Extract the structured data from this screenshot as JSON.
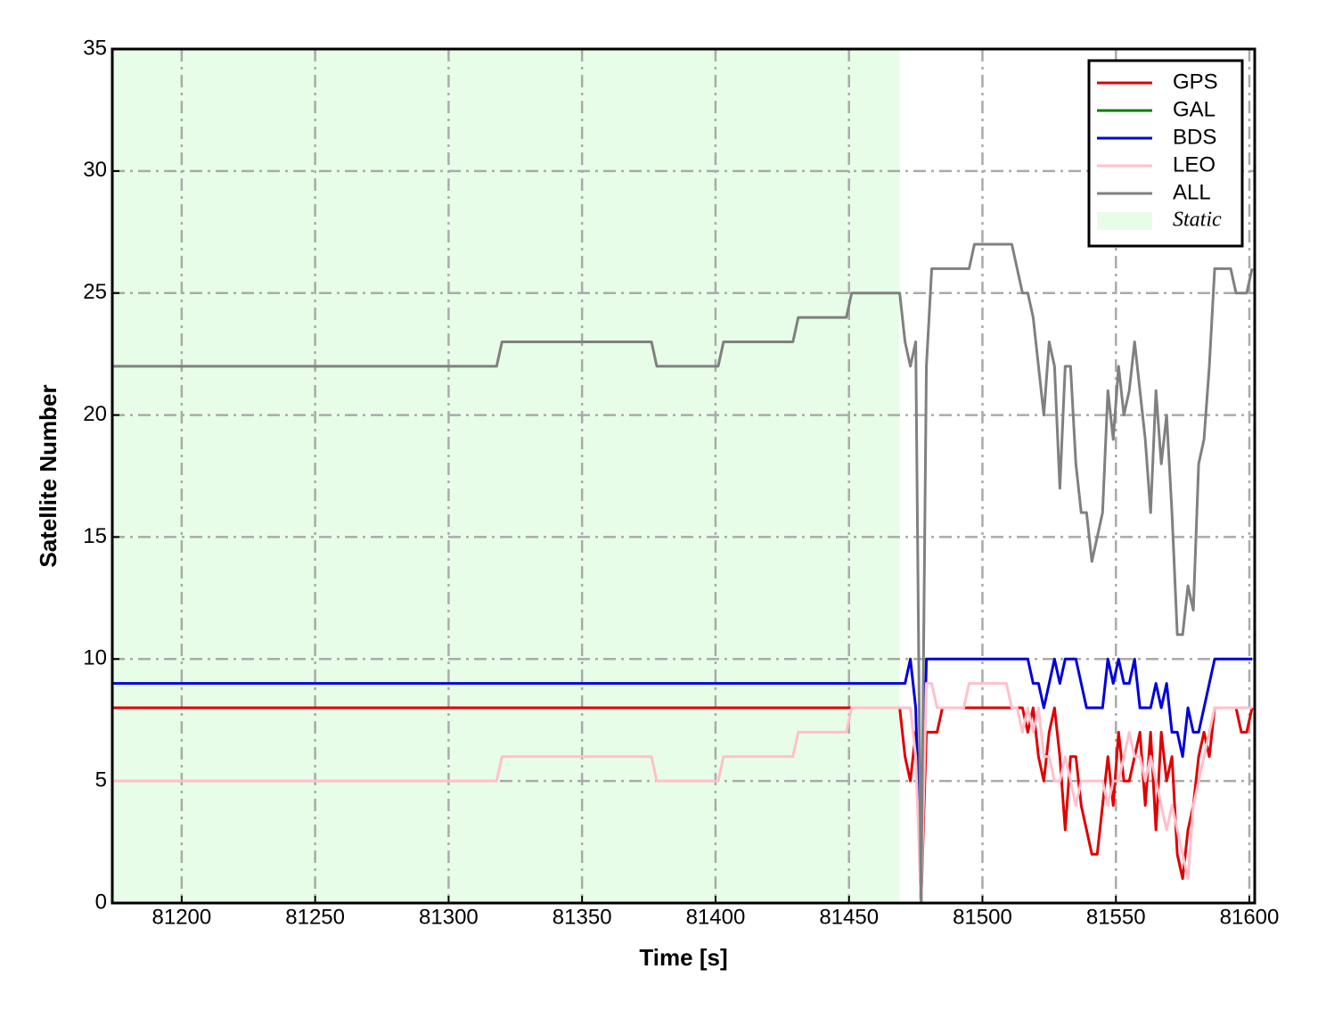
{
  "chart_data": {
    "type": "line",
    "xlabel": "Time [s]",
    "ylabel": "Satellite Number",
    "xlim": [
      81174,
      81602
    ],
    "ylim": [
      0,
      35
    ],
    "xticks": [
      81200,
      81250,
      81300,
      81350,
      81400,
      81450,
      81500,
      81550,
      81600
    ],
    "yticks": [
      0,
      5,
      10,
      15,
      20,
      25,
      30,
      35
    ],
    "grid": true,
    "legend": "upper right",
    "static_region": {
      "label": "Static",
      "xrange": [
        81174,
        81469
      ],
      "color": "#e8fde8"
    },
    "x": [
      81174,
      81318,
      81320,
      81376,
      81378,
      81401,
      81403,
      81429,
      81431,
      81449,
      81451,
      81469,
      81471,
      81473,
      81475,
      81477,
      81479,
      81481,
      81483,
      81485,
      81487,
      81489,
      81491,
      81493,
      81495,
      81497,
      81499,
      81501,
      81503,
      81505,
      81507,
      81509,
      81511,
      81513,
      81515,
      81517,
      81519,
      81521,
      81523,
      81525,
      81527,
      81529,
      81531,
      81533,
      81535,
      81537,
      81539,
      81541,
      81543,
      81545,
      81547,
      81549,
      81551,
      81553,
      81555,
      81557,
      81559,
      81561,
      81563,
      81565,
      81567,
      81569,
      81571,
      81573,
      81575,
      81577,
      81579,
      81581,
      81583,
      81585,
      81587,
      81589,
      81591,
      81593,
      81595,
      81597,
      81599,
      81601
    ],
    "series": [
      {
        "name": "GPS",
        "color": "#e00000",
        "values": [
          8,
          8,
          8,
          8,
          8,
          8,
          8,
          8,
          8,
          8,
          8,
          8,
          6,
          5,
          7,
          0,
          7,
          7,
          7,
          8,
          8,
          8,
          8,
          8,
          8,
          8,
          8,
          8,
          8,
          8,
          8,
          8,
          8,
          8,
          8,
          7,
          8,
          6,
          5,
          7,
          8,
          6,
          3,
          6,
          6,
          4,
          3,
          2,
          2,
          4,
          6,
          4,
          7,
          5,
          5,
          6,
          7,
          4,
          7,
          3,
          7,
          5,
          6,
          2,
          1,
          3,
          4,
          6,
          7,
          6,
          8,
          8,
          8,
          8,
          8,
          7,
          7,
          8
        ]
      },
      {
        "name": "GAL",
        "color": "#008000",
        "values": [
          0,
          0,
          0,
          0,
          0,
          0,
          0,
          0,
          0,
          0,
          0,
          0,
          0,
          0,
          0,
          0,
          0,
          0,
          0,
          0,
          0,
          0,
          0,
          0,
          0,
          0,
          0,
          0,
          0,
          0,
          0,
          0,
          0,
          0,
          0,
          0,
          0,
          0,
          0,
          0,
          0,
          0,
          0,
          0,
          0,
          0,
          0,
          0,
          0,
          0,
          0,
          0,
          0,
          0,
          0,
          0,
          0,
          0,
          0,
          0,
          0,
          0,
          0,
          0,
          0,
          0,
          0,
          0,
          0,
          0,
          0,
          0,
          0,
          0,
          0,
          0,
          0,
          0
        ]
      },
      {
        "name": "BDS",
        "color": "#0000dd",
        "values": [
          9,
          9,
          9,
          9,
          9,
          9,
          9,
          9,
          9,
          9,
          9,
          9,
          9,
          10,
          8,
          0,
          10,
          10,
          10,
          10,
          10,
          10,
          10,
          10,
          10,
          10,
          10,
          10,
          10,
          10,
          10,
          10,
          10,
          10,
          10,
          10,
          9,
          9,
          8,
          9,
          10,
          9,
          10,
          10,
          10,
          9,
          8,
          8,
          8,
          8,
          10,
          9,
          10,
          9,
          9,
          10,
          8,
          8,
          8,
          9,
          8,
          9,
          7,
          7,
          6,
          8,
          7,
          7,
          8,
          9,
          10,
          10,
          10,
          10,
          10,
          10,
          10,
          10
        ]
      },
      {
        "name": "LEO",
        "color": "#ffc0cb",
        "values": [
          5,
          5,
          6,
          6,
          5,
          5,
          6,
          6,
          7,
          7,
          8,
          8,
          8,
          8,
          6,
          0,
          9,
          9,
          8,
          8,
          8,
          8,
          8,
          8,
          9,
          9,
          9,
          9,
          9,
          9,
          9,
          9,
          8,
          8,
          7,
          8,
          7,
          8,
          6,
          6,
          5,
          5,
          6,
          5,
          4,
          5,
          5,
          5,
          5,
          5,
          4,
          5,
          5,
          6,
          7,
          6,
          6,
          5,
          6,
          5,
          4,
          3,
          4,
          3,
          2,
          1,
          4,
          5,
          6,
          7,
          8,
          8,
          8,
          8,
          8,
          8,
          8,
          8
        ]
      },
      {
        "name": "ALL",
        "color": "#808080",
        "values": [
          22,
          22,
          23,
          23,
          22,
          22,
          23,
          23,
          24,
          24,
          25,
          25,
          23,
          22,
          23,
          0,
          22,
          26,
          26,
          26,
          26,
          26,
          26,
          26,
          26,
          27,
          27,
          27,
          27,
          27,
          27,
          27,
          27,
          26,
          25,
          25,
          24,
          22,
          20,
          23,
          22,
          17,
          22,
          22,
          18,
          16,
          16,
          14,
          15,
          16,
          21,
          19,
          22,
          20,
          21,
          23,
          21,
          19,
          16,
          21,
          18,
          20,
          16,
          11,
          11,
          13,
          12,
          18,
          19,
          22,
          26,
          26,
          26,
          26,
          25,
          25,
          25,
          26
        ]
      }
    ]
  }
}
